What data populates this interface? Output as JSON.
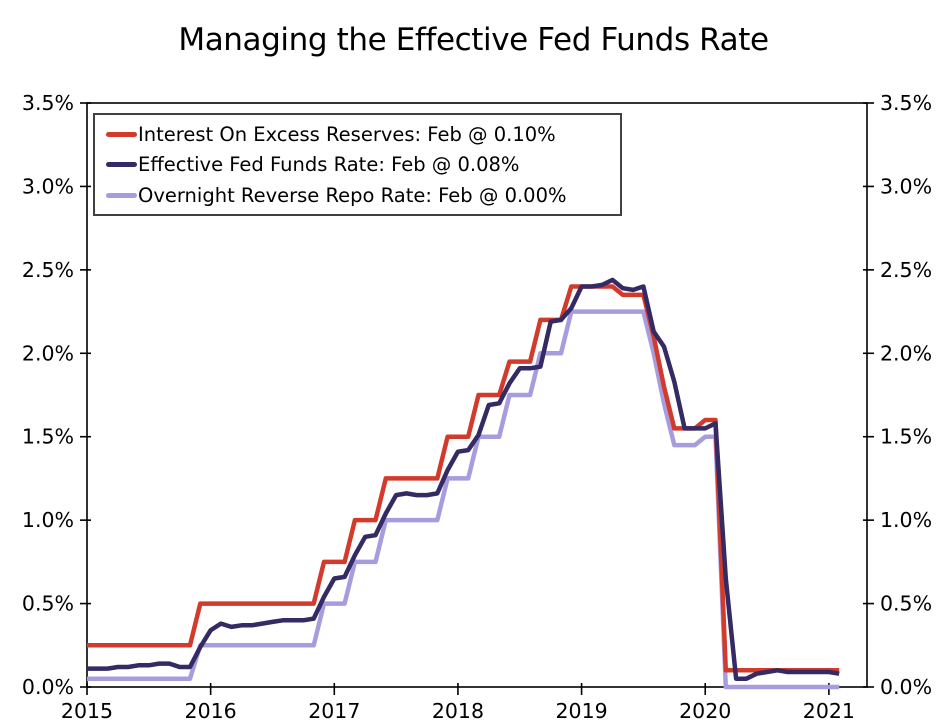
{
  "page": {
    "background": "#ffffff",
    "axis_color": "#000000"
  },
  "chart_data": {
    "type": "line",
    "title": "Managing the Effective Fed Funds Rate",
    "x_tick_labels": [
      "2015",
      "2016",
      "2017",
      "2018",
      "2019",
      "2020",
      "2021"
    ],
    "y_tick_labels": [
      "0.0%",
      "0.5%",
      "1.0%",
      "1.5%",
      "2.0%",
      "2.5%",
      "3.0%",
      "3.5%"
    ],
    "ylim": [
      0,
      3.5
    ],
    "y_tick_step": 0.5,
    "x_start_month": "2015-01",
    "x_end_month": "2021-02",
    "x_total_months": 75.7,
    "months_per_x_tick": 12,
    "grid": false,
    "legend_position": "top-left",
    "draw_order": [
      2,
      0,
      1
    ],
    "series": [
      {
        "label": "Interest On Excess Reserves: Feb @ 0.10%",
        "color": "#d23b2b",
        "values": [
          0.25,
          0.25,
          0.25,
          0.25,
          0.25,
          0.25,
          0.25,
          0.25,
          0.25,
          0.25,
          0.25,
          0.5,
          0.5,
          0.5,
          0.5,
          0.5,
          0.5,
          0.5,
          0.5,
          0.5,
          0.5,
          0.5,
          0.5,
          0.75,
          0.75,
          0.75,
          1.0,
          1.0,
          1.0,
          1.25,
          1.25,
          1.25,
          1.25,
          1.25,
          1.25,
          1.5,
          1.5,
          1.5,
          1.75,
          1.75,
          1.75,
          1.95,
          1.95,
          1.95,
          2.2,
          2.2,
          2.2,
          2.4,
          2.4,
          2.4,
          2.4,
          2.4,
          2.35,
          2.35,
          2.35,
          2.1,
          1.8,
          1.55,
          1.55,
          1.55,
          1.6,
          1.6,
          0.1,
          0.1,
          0.1,
          0.1,
          0.1,
          0.1,
          0.1,
          0.1,
          0.1,
          0.1,
          0.1,
          0.1
        ]
      },
      {
        "label": "Effective Fed Funds Rate: Feb @ 0.08%",
        "color": "#342a64",
        "values": [
          0.11,
          0.11,
          0.11,
          0.12,
          0.12,
          0.13,
          0.13,
          0.14,
          0.14,
          0.12,
          0.12,
          0.24,
          0.34,
          0.38,
          0.36,
          0.37,
          0.37,
          0.38,
          0.39,
          0.4,
          0.4,
          0.4,
          0.41,
          0.54,
          0.65,
          0.66,
          0.79,
          0.9,
          0.91,
          1.04,
          1.15,
          1.16,
          1.15,
          1.15,
          1.16,
          1.3,
          1.41,
          1.42,
          1.51,
          1.69,
          1.7,
          1.82,
          1.91,
          1.91,
          1.92,
          2.19,
          2.2,
          2.27,
          2.4,
          2.4,
          2.41,
          2.44,
          2.39,
          2.38,
          2.4,
          2.13,
          2.04,
          1.83,
          1.55,
          1.55,
          1.55,
          1.58,
          0.65,
          0.05,
          0.05,
          0.08,
          0.09,
          0.1,
          0.09,
          0.09,
          0.09,
          0.09,
          0.09,
          0.08
        ]
      },
      {
        "label": "Overnight Reverse Repo Rate: Feb @ 0.00%",
        "color": "#a89cdf",
        "values": [
          0.05,
          0.05,
          0.05,
          0.05,
          0.05,
          0.05,
          0.05,
          0.05,
          0.05,
          0.05,
          0.05,
          0.25,
          0.25,
          0.25,
          0.25,
          0.25,
          0.25,
          0.25,
          0.25,
          0.25,
          0.25,
          0.25,
          0.25,
          0.5,
          0.5,
          0.5,
          0.75,
          0.75,
          0.75,
          1.0,
          1.0,
          1.0,
          1.0,
          1.0,
          1.0,
          1.25,
          1.25,
          1.25,
          1.5,
          1.5,
          1.5,
          1.75,
          1.75,
          1.75,
          2.0,
          2.0,
          2.0,
          2.25,
          2.25,
          2.25,
          2.25,
          2.25,
          2.25,
          2.25,
          2.25,
          2.0,
          1.7,
          1.45,
          1.45,
          1.45,
          1.5,
          1.5,
          0.0,
          0.0,
          0.0,
          0.0,
          0.0,
          0.0,
          0.0,
          0.0,
          0.0,
          0.0,
          0.0,
          0.0
        ]
      }
    ]
  }
}
